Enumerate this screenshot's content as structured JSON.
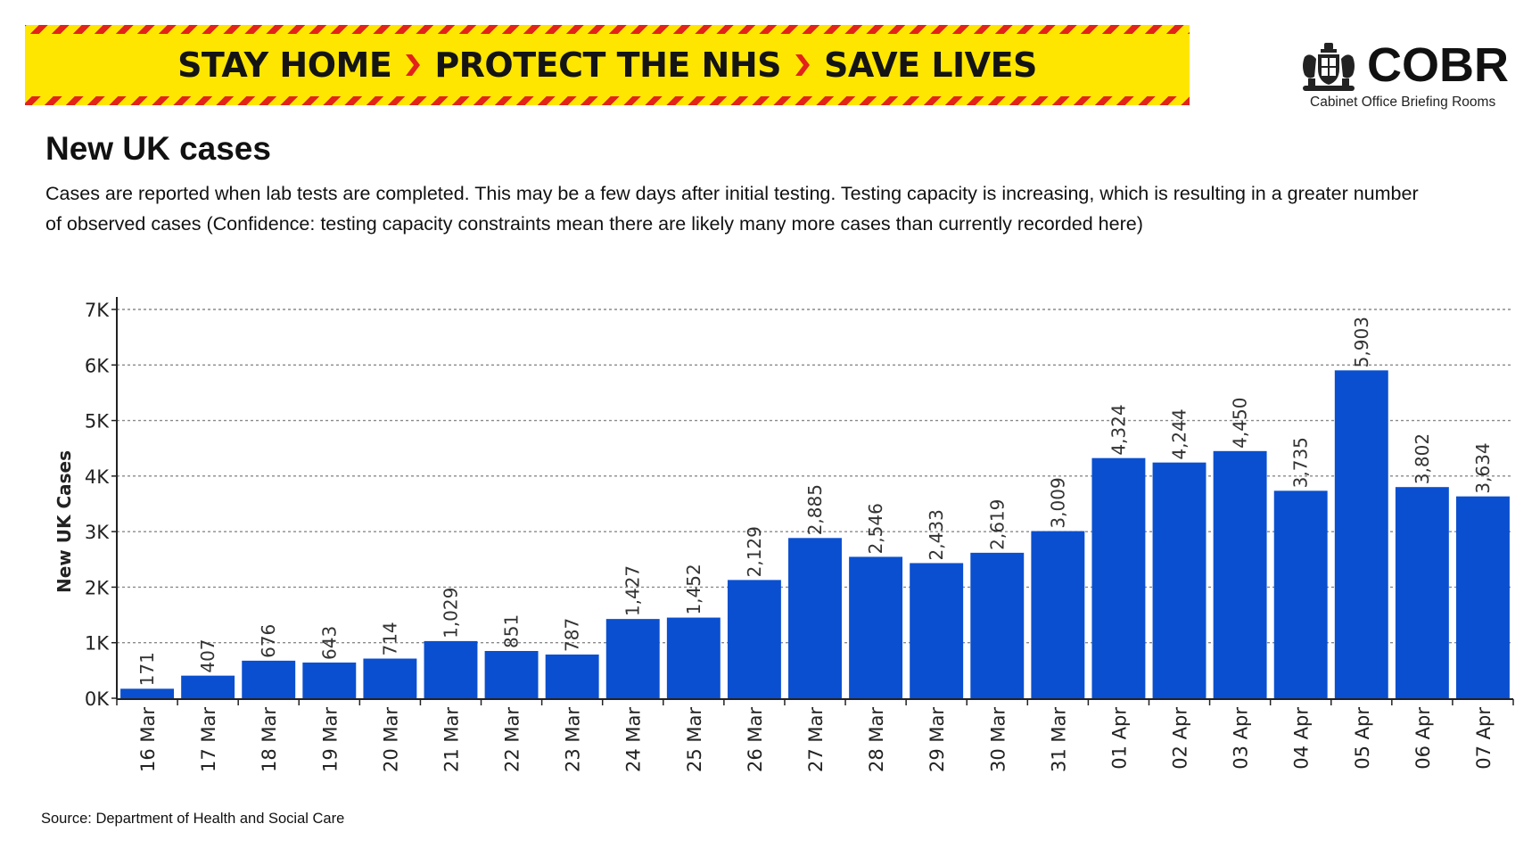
{
  "banner": {
    "words": [
      "STAY HOME",
      "PROTECT THE NHS",
      "SAVE LIVES"
    ],
    "colors": {
      "background": "#ffe600",
      "stripe": "#e2231a",
      "arrow": "#e2231a",
      "text": "#141414"
    }
  },
  "logo": {
    "name": "COBR",
    "subtitle": "Cabinet Office Briefing Rooms",
    "icon": "royal-crest-icon"
  },
  "header": {
    "title": "New UK cases",
    "description": "Cases are reported when lab tests are completed. This may be a few days after initial testing. Testing capacity is increasing, which is resulting in a greater number of observed cases (Confidence: testing capacity constraints mean there are likely many more cases than currently recorded here)"
  },
  "source": "Source: Department of Health and Social Care",
  "chart_data": {
    "type": "bar",
    "title": "",
    "xlabel": "",
    "ylabel": "New UK Cases",
    "ylim": [
      0,
      7000
    ],
    "yticks": [
      {
        "value": 0,
        "label": "0K"
      },
      {
        "value": 1000,
        "label": "1K"
      },
      {
        "value": 2000,
        "label": "2K"
      },
      {
        "value": 3000,
        "label": "3K"
      },
      {
        "value": 4000,
        "label": "4K"
      },
      {
        "value": 5000,
        "label": "5K"
      },
      {
        "value": 6000,
        "label": "6K"
      },
      {
        "value": 7000,
        "label": "7K"
      }
    ],
    "grid": true,
    "bar_color": "#0a4fcf",
    "categories": [
      "16 Mar",
      "17 Mar",
      "18 Mar",
      "19 Mar",
      "20 Mar",
      "21 Mar",
      "22 Mar",
      "23 Mar",
      "24 Mar",
      "25 Mar",
      "26 Mar",
      "27 Mar",
      "28 Mar",
      "29 Mar",
      "30 Mar",
      "31 Mar",
      "01 Apr",
      "02 Apr",
      "03 Apr",
      "04 Apr",
      "05 Apr",
      "06 Apr",
      "07 Apr"
    ],
    "values": [
      171,
      407,
      676,
      643,
      714,
      1029,
      851,
      787,
      1427,
      1452,
      2129,
      2885,
      2546,
      2433,
      2619,
      3009,
      4324,
      4244,
      4450,
      3735,
      5903,
      3802,
      3634
    ],
    "data_labels": [
      "171",
      "407",
      "676",
      "643",
      "714",
      "1,029",
      "851",
      "787",
      "1,427",
      "1,452",
      "2,129",
      "2,885",
      "2,546",
      "2,433",
      "2,619",
      "3,009",
      "4,324",
      "4,244",
      "4,450",
      "3,735",
      "5,903",
      "3,802",
      "3,634"
    ]
  }
}
